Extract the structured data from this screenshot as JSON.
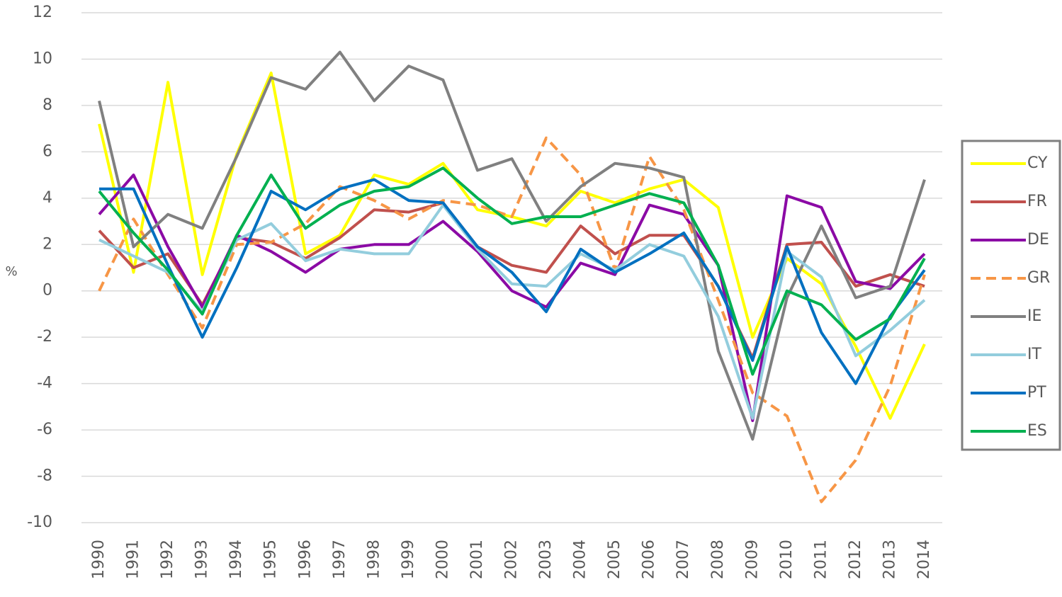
{
  "chart_data": {
    "type": "line",
    "y_label": "%",
    "categories": [
      "1990",
      "1991",
      "1992",
      "1993",
      "1994",
      "1995",
      "1996",
      "1997",
      "1998",
      "1999",
      "2000",
      "2001",
      "2002",
      "2003",
      "2004",
      "2005",
      "2006",
      "2007",
      "2008",
      "2009",
      "2010",
      "2011",
      "2012",
      "2013",
      "2014"
    ],
    "ylim": [
      -10,
      12
    ],
    "yticks": [
      -10,
      -8,
      -6,
      -4,
      -2,
      0,
      2,
      4,
      6,
      8,
      10,
      12
    ],
    "grid": true,
    "legend": "right",
    "series": [
      {
        "name": "CY",
        "color": "#ffff00",
        "values": [
          7.2,
          0.8,
          9.0,
          0.7,
          5.9,
          9.4,
          1.6,
          2.4,
          5.0,
          4.6,
          5.5,
          3.5,
          3.2,
          2.8,
          4.3,
          3.8,
          4.4,
          4.8,
          3.6,
          -2.0,
          1.4,
          0.3,
          -2.4,
          -5.5,
          -2.3
        ]
      },
      {
        "name": "FR",
        "color": "#c0504d",
        "values": [
          2.6,
          1.0,
          1.6,
          -0.6,
          2.3,
          2.1,
          1.4,
          2.3,
          3.5,
          3.4,
          3.8,
          1.9,
          1.1,
          0.8,
          2.8,
          1.6,
          2.4,
          2.4,
          0.2,
          -2.9,
          2.0,
          2.1,
          0.2,
          0.7,
          0.2
        ]
      },
      {
        "name": "DE",
        "color": "#8b0aa5",
        "values": [
          3.3,
          5.0,
          1.9,
          -0.7,
          2.4,
          1.7,
          0.8,
          1.8,
          2.0,
          2.0,
          3.0,
          1.7,
          0.0,
          -0.7,
          1.2,
          0.7,
          3.7,
          3.3,
          1.1,
          -5.6,
          4.1,
          3.6,
          0.4,
          0.1,
          1.6
        ]
      },
      {
        "name": "GR",
        "color": "#f79646",
        "dashed": true,
        "values": [
          0.0,
          3.1,
          0.7,
          -1.6,
          2.0,
          2.1,
          2.9,
          4.5,
          3.9,
          3.1,
          3.9,
          3.7,
          3.2,
          6.6,
          5.0,
          0.9,
          5.8,
          3.5,
          -0.4,
          -4.4,
          -5.4,
          -9.1,
          -7.3,
          -4.1,
          0.7
        ]
      },
      {
        "name": "IE",
        "color": "#808080",
        "values": [
          8.2,
          1.9,
          3.3,
          2.7,
          5.8,
          9.2,
          8.7,
          10.3,
          8.2,
          9.7,
          9.1,
          5.2,
          5.7,
          3.0,
          4.5,
          5.5,
          5.3,
          4.9,
          -2.6,
          -6.4,
          -0.3,
          2.8,
          -0.3,
          0.2,
          4.8
        ]
      },
      {
        "name": "IT",
        "color": "#93cddd",
        "values": [
          2.2,
          1.5,
          0.8,
          -0.9,
          2.2,
          2.9,
          1.3,
          1.8,
          1.6,
          1.6,
          3.7,
          1.8,
          0.3,
          0.2,
          1.6,
          0.9,
          2.0,
          1.5,
          -1.1,
          -5.5,
          1.7,
          0.6,
          -2.8,
          -1.7,
          -0.4
        ]
      },
      {
        "name": "PT",
        "color": "#0070c0",
        "values": [
          4.4,
          4.4,
          1.1,
          -2.0,
          1.0,
          4.3,
          3.5,
          4.4,
          4.8,
          3.9,
          3.8,
          1.9,
          0.8,
          -0.9,
          1.8,
          0.8,
          1.6,
          2.5,
          0.2,
          -3.0,
          1.9,
          -1.8,
          -4.0,
          -1.1,
          0.9
        ]
      },
      {
        "name": "ES",
        "color": "#00b050",
        "values": [
          4.3,
          2.5,
          0.9,
          -1.0,
          2.4,
          5.0,
          2.7,
          3.7,
          4.3,
          4.5,
          5.3,
          4.0,
          2.9,
          3.2,
          3.2,
          3.7,
          4.2,
          3.8,
          1.1,
          -3.6,
          0.0,
          -0.6,
          -2.1,
          -1.2,
          1.4
        ]
      }
    ]
  }
}
